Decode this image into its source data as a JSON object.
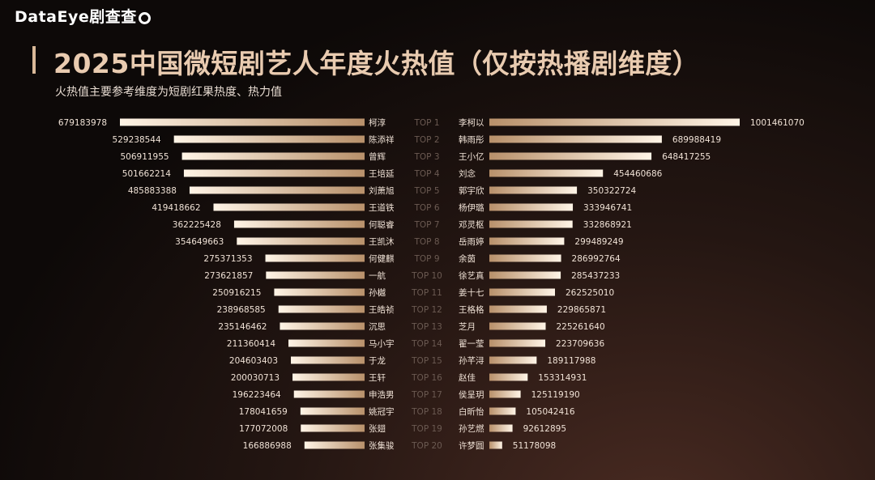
{
  "brand": "DataEye剧查查",
  "title": "2025中国微短剧艺人年度火热值（仅按热播剧维度）",
  "subtitle": "火热值主要参考维度为短剧红果热度、热力值",
  "colors": {
    "bar_start": "#b8906a",
    "bar_end": "#fff4e6",
    "rank": "#6b5a52",
    "label": "#f0e2d6"
  },
  "chart_data": {
    "type": "bar",
    "orientation": "horizontal-mirrored",
    "ranks": [
      "TOP 1",
      "TOP 2",
      "TOP 3",
      "TOP 4",
      "TOP 5",
      "TOP 6",
      "TOP 7",
      "TOP 8",
      "TOP 9",
      "TOP 10",
      "TOP 11",
      "TOP 12",
      "TOP 13",
      "TOP 14",
      "TOP 15",
      "TOP 16",
      "TOP 17",
      "TOP 18",
      "TOP 19",
      "TOP 20"
    ],
    "series": [
      {
        "side": "left",
        "names": [
          "柯淳",
          "陈添祥",
          "曾辉",
          "王培延",
          "刘萧旭",
          "王道铁",
          "何聪睿",
          "王凯沐",
          "何健麒",
          "一航",
          "孙樾",
          "王皓祯",
          "沉思",
          "马小宇",
          "于龙",
          "王轩",
          "申浩男",
          "姚冠宇",
          "张翅",
          "张集骏"
        ],
        "values": [
          679183978,
          529238544,
          506911955,
          501662214,
          485883388,
          419418662,
          362225428,
          354649663,
          275371353,
          273621857,
          250916215,
          238968585,
          235146462,
          211360414,
          204603403,
          200030713,
          196223464,
          178041659,
          177072008,
          166886988
        ]
      },
      {
        "side": "right",
        "names": [
          "李柯以",
          "韩雨彤",
          "王小亿",
          "刘念",
          "郭宇欣",
          "杨伊璐",
          "邓灵枢",
          "岳雨婷",
          "余茵",
          "徐艺真",
          "姜十七",
          "王格格",
          "芝月",
          "翟一莹",
          "孙芊浔",
          "赵佳",
          "侯呈玥",
          "白昕怡",
          "孙艺燃",
          "许梦圆"
        ],
        "values": [
          1001461070,
          689988419,
          648417255,
          454460686,
          350322724,
          333946741,
          332868921,
          299489249,
          286992764,
          285437233,
          262525010,
          229865871,
          225261640,
          223709636,
          189117988,
          153314931,
          125119190,
          105042416,
          92612895,
          51178098
        ]
      }
    ]
  }
}
